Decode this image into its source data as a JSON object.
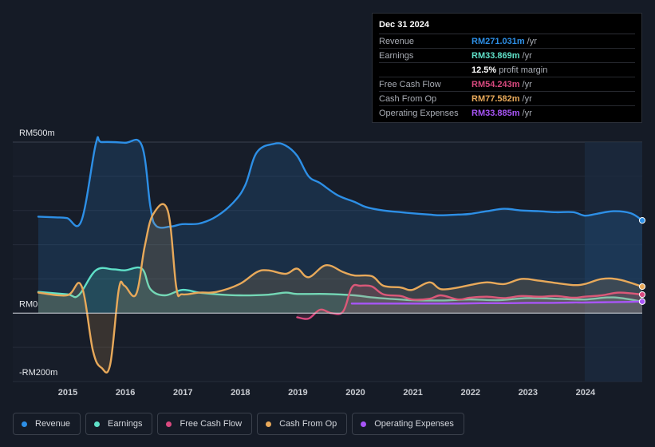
{
  "tooltip": {
    "date": "Dec 31 2024",
    "rows": [
      {
        "label": "Revenue",
        "value": "RM271.031m",
        "unit": "/yr",
        "color": "#2d8fe6"
      },
      {
        "label": "Earnings",
        "value": "RM33.869m",
        "unit": "/yr",
        "color": "#5fe0c8"
      },
      {
        "label": "",
        "value": "12.5%",
        "unit": "profit margin",
        "color": "#ffffff"
      },
      {
        "label": "Free Cash Flow",
        "value": "RM54.243m",
        "unit": "/yr",
        "color": "#d9497f"
      },
      {
        "label": "Cash From Op",
        "value": "RM77.582m",
        "unit": "/yr",
        "color": "#e8a95a"
      },
      {
        "label": "Operating Expenses",
        "value": "RM33.885m",
        "unit": "/yr",
        "color": "#a855f7"
      }
    ]
  },
  "legend": [
    {
      "label": "Revenue",
      "color": "#2d8fe6"
    },
    {
      "label": "Earnings",
      "color": "#5fe0c8"
    },
    {
      "label": "Free Cash Flow",
      "color": "#d9497f"
    },
    {
      "label": "Cash From Op",
      "color": "#e8a95a"
    },
    {
      "label": "Operating Expenses",
      "color": "#a855f7"
    }
  ],
  "chart_data": {
    "type": "area",
    "title": "",
    "xlabel": "",
    "ylabel": "",
    "ylim": [
      -200,
      500
    ],
    "xlim": [
      2014.5,
      2025.0
    ],
    "y_axis_labels": [
      "RM500m",
      "RM0",
      "-RM200m"
    ],
    "y_axis_values": [
      500,
      0,
      -200
    ],
    "x_ticks": [
      2015,
      2016,
      2017,
      2018,
      2019,
      2020,
      2021,
      2022,
      2023,
      2024
    ],
    "x_tick_labels": [
      "2015",
      "2016",
      "2017",
      "2018",
      "2019",
      "2020",
      "2021",
      "2022",
      "2023",
      "2024"
    ],
    "highlight_from": 2024.0,
    "series": [
      {
        "name": "Revenue",
        "color": "#2d8fe6",
        "fill": true,
        "x": [
          2014.5,
          2014.8,
          2015.0,
          2015.25,
          2015.5,
          2015.6,
          2016.0,
          2016.3,
          2016.45,
          2016.55,
          2016.8,
          2017.0,
          2017.3,
          2017.6,
          2017.9,
          2018.1,
          2018.3,
          2018.6,
          2018.8,
          2019.0,
          2019.2,
          2019.4,
          2019.7,
          2020.0,
          2020.2,
          2020.5,
          2020.8,
          2021.0,
          2021.3,
          2021.5,
          2021.8,
          2022.0,
          2022.3,
          2022.6,
          2022.9,
          2023.2,
          2023.5,
          2023.8,
          2024.0,
          2024.2,
          2024.5,
          2024.8,
          2025.0
        ],
        "y": [
          282,
          280,
          278,
          270,
          495,
          500,
          498,
          490,
          310,
          255,
          253,
          260,
          262,
          283,
          325,
          375,
          470,
          495,
          490,
          460,
          400,
          380,
          345,
          325,
          310,
          300,
          295,
          292,
          288,
          286,
          288,
          290,
          298,
          305,
          300,
          298,
          295,
          295,
          285,
          290,
          298,
          292,
          271
        ]
      },
      {
        "name": "Earnings",
        "color": "#5fe0c8",
        "fill": true,
        "x": [
          2014.5,
          2015.0,
          2015.2,
          2015.5,
          2015.8,
          2016.0,
          2016.3,
          2016.45,
          2016.7,
          2017.0,
          2017.3,
          2017.6,
          2018.0,
          2018.5,
          2018.8,
          2019.0,
          2019.5,
          2020.0,
          2020.3,
          2020.6,
          2021.0,
          2021.5,
          2022.0,
          2022.5,
          2023.0,
          2023.5,
          2024.0,
          2024.5,
          2025.0
        ],
        "y": [
          62,
          55,
          52,
          125,
          128,
          125,
          130,
          70,
          52,
          68,
          60,
          55,
          52,
          54,
          60,
          56,
          56,
          52,
          46,
          42,
          38,
          37,
          40,
          38,
          44,
          42,
          40,
          46,
          33.869
        ]
      },
      {
        "name": "Free Cash Flow",
        "color": "#d9497f",
        "fill": true,
        "x": [
          2014.5,
          2015.0,
          2015.25,
          2015.4,
          2015.6,
          2015.8,
          2016.0,
          2016.2,
          2016.3,
          2016.45,
          2016.7,
          2017.0,
          2017.3,
          2017.6,
          2018.0,
          2018.5,
          2018.8,
          2019.0,
          2019.2,
          2019.4,
          2019.6,
          2019.8,
          2019.95,
          2020.1,
          2020.3,
          2020.5,
          2020.8,
          2021.0,
          2021.3,
          2021.5,
          2021.8,
          2022.0,
          2022.3,
          2022.6,
          2022.9,
          2023.2,
          2023.5,
          2023.8,
          2024.0,
          2024.3,
          2024.6,
          2025.0
        ],
        "y": [
          null,
          null,
          null,
          null,
          null,
          null,
          null,
          null,
          null,
          null,
          null,
          null,
          null,
          null,
          null,
          null,
          null,
          -12,
          -16,
          10,
          0,
          5,
          75,
          80,
          78,
          55,
          50,
          40,
          42,
          52,
          40,
          45,
          48,
          44,
          50,
          48,
          50,
          45,
          48,
          52,
          60,
          54.243
        ]
      },
      {
        "name": "Cash From Op",
        "color": "#e8a95a",
        "fill": true,
        "x": [
          2014.5,
          2015.0,
          2015.25,
          2015.45,
          2015.6,
          2015.75,
          2015.9,
          2016.0,
          2016.2,
          2016.35,
          2016.5,
          2016.75,
          2016.9,
          2017.0,
          2017.3,
          2017.6,
          2018.0,
          2018.3,
          2018.5,
          2018.8,
          2019.0,
          2019.2,
          2019.5,
          2019.8,
          2020.0,
          2020.3,
          2020.5,
          2020.8,
          2021.0,
          2021.3,
          2021.5,
          2021.8,
          2022.0,
          2022.3,
          2022.6,
          2022.9,
          2023.2,
          2023.5,
          2023.8,
          2024.0,
          2024.3,
          2024.6,
          2025.0
        ],
        "y": [
          60,
          52,
          80,
          -110,
          -160,
          -150,
          70,
          80,
          55,
          195,
          290,
          300,
          75,
          55,
          60,
          62,
          85,
          120,
          125,
          115,
          130,
          105,
          140,
          120,
          110,
          108,
          80,
          75,
          68,
          90,
          70,
          75,
          82,
          90,
          85,
          100,
          95,
          88,
          82,
          85,
          100,
          98,
          77.582
        ]
      },
      {
        "name": "Operating Expenses",
        "color": "#a855f7",
        "fill": false,
        "x": [
          2019.95,
          2020.3,
          2020.6,
          2021.0,
          2021.4,
          2021.8,
          2022.2,
          2022.6,
          2023.0,
          2023.4,
          2023.8,
          2024.0,
          2024.4,
          2024.8,
          2025.0
        ],
        "y": [
          28,
          28,
          28,
          28,
          28,
          28,
          29,
          29,
          30,
          30,
          31,
          31,
          32,
          33,
          33.885
        ]
      }
    ]
  }
}
